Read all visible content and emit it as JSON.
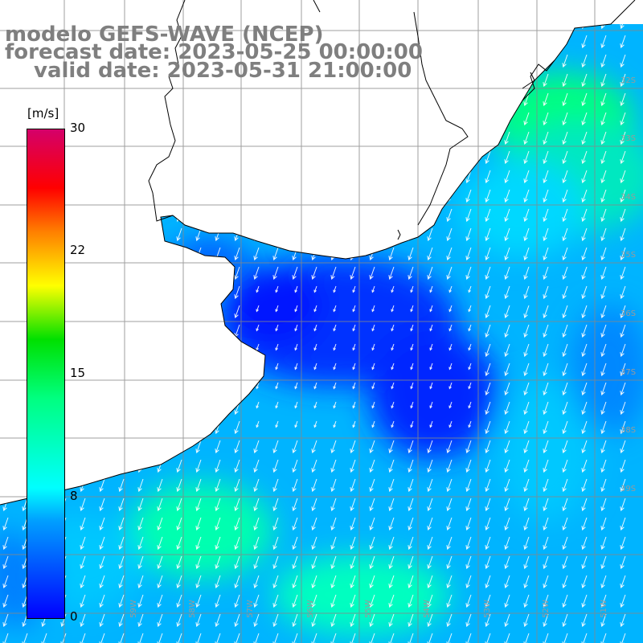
{
  "title": {
    "line1": "modelo GEFS-WAVE (NCEP)",
    "line2": "forecast date: 2023-05-25 00:00:00",
    "line3": "valid date: 2023-05-31 21:00:00"
  },
  "colorbar": {
    "unit": "[m/s]",
    "ticks": [
      "30",
      "22",
      "15",
      "8",
      "0"
    ],
    "colors": [
      "#0000ff",
      "#00a0ff",
      "#00ffff",
      "#00ff80",
      "#00e000",
      "#ffff00",
      "#ff8000",
      "#ff0000",
      "#d4006a"
    ]
  },
  "lat_labels": [
    "32S",
    "33S",
    "34S",
    "35S",
    "36S",
    "37S",
    "38S",
    "39S"
  ],
  "lon_labels": [
    "59W",
    "58W",
    "57W",
    "56W",
    "55W",
    "54W",
    "53W",
    "52W",
    "51W"
  ],
  "colors": {
    "land": "#ffffff",
    "coast": "#000000",
    "grid": "#888888",
    "title": "#7f7f7f",
    "arrow": "#ffffff"
  }
}
